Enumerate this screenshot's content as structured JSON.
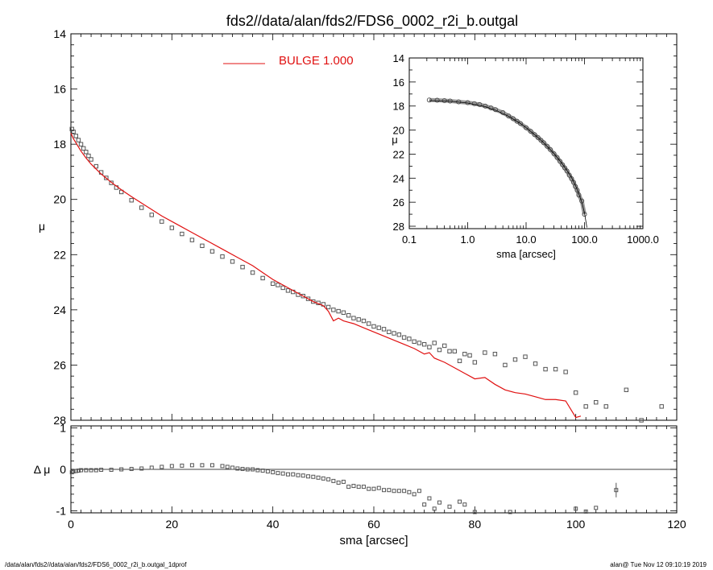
{
  "colors": {
    "model": "#e01010",
    "data_marker": "#555555",
    "frame": "#000000",
    "background": "#ffffff"
  },
  "footer": {
    "left": "/data/alan/fds2//data/alan/fds2/FDS6_0002_r2i_b.outgal_1dprof",
    "right": "alan@  Tue Nov 12 09:10:19 2019"
  },
  "chart_data": [
    {
      "id": "main",
      "type": "scatter",
      "title": "fds2//data/alan/fds2/FDS6_0002_r2i_b.outgal",
      "xlabel": "",
      "ylabel": "μ",
      "xlim": [
        0,
        120
      ],
      "ylim": [
        28,
        14
      ],
      "yticks": [
        "14",
        "16",
        "18",
        "20",
        "22",
        "24",
        "26",
        "28"
      ],
      "legend": {
        "placement": "top-center",
        "label": "BULGE  1.000"
      },
      "series": [
        {
          "name": "",
          "style": "open-square-markers",
          "x": [
            0.2,
            0.5,
            1,
            1.5,
            2,
            2.5,
            3,
            3.5,
            4,
            5,
            6,
            7,
            8,
            9,
            10,
            12,
            14,
            16,
            18,
            20,
            22,
            24,
            26,
            28,
            30,
            32,
            34,
            36,
            38,
            40,
            41,
            42,
            43,
            44,
            45,
            46,
            47,
            48,
            49,
            50,
            51,
            52,
            53,
            54,
            55,
            56,
            57,
            58,
            59,
            60,
            61,
            62,
            63,
            64,
            65,
            66,
            67,
            68,
            69,
            70,
            71,
            72,
            73,
            74,
            75,
            76,
            77,
            78,
            79,
            80,
            82,
            84,
            86,
            88,
            90,
            92,
            94,
            96,
            98,
            100,
            102,
            104,
            106,
            108,
            110,
            113,
            117
          ],
          "y": [
            17.45,
            17.55,
            17.7,
            17.85,
            18.0,
            18.15,
            18.28,
            18.42,
            18.55,
            18.8,
            19.02,
            19.22,
            19.4,
            19.57,
            19.73,
            20.03,
            20.3,
            20.56,
            20.8,
            21.03,
            21.25,
            21.47,
            21.68,
            21.88,
            22.07,
            22.25,
            22.45,
            22.65,
            22.85,
            23.05,
            23.1,
            23.2,
            23.3,
            23.35,
            23.45,
            23.5,
            23.6,
            23.7,
            23.75,
            23.8,
            23.9,
            24.0,
            24.05,
            24.1,
            24.2,
            24.3,
            24.35,
            24.4,
            24.5,
            24.6,
            24.65,
            24.7,
            24.8,
            24.85,
            24.9,
            25.0,
            25.05,
            25.15,
            25.2,
            25.25,
            25.35,
            25.2,
            25.45,
            25.3,
            25.5,
            25.5,
            25.85,
            25.6,
            25.65,
            25.9,
            25.55,
            25.6,
            26.0,
            25.8,
            25.7,
            25.95,
            26.15,
            26.15,
            26.25,
            27.0,
            27.5,
            27.35,
            27.5,
            28.5,
            26.9,
            28.0,
            27.5
          ]
        },
        {
          "name": "BULGE  1.000",
          "style": "line",
          "x": [
            0,
            0.5,
            1,
            2,
            3,
            4,
            6,
            8,
            10,
            12,
            15,
            18,
            21,
            24,
            27,
            30,
            33,
            36,
            38,
            40,
            42,
            44,
            46,
            48,
            50,
            51,
            52,
            53,
            54,
            55,
            56,
            58,
            60,
            62,
            64,
            66,
            68,
            70,
            71,
            72,
            74,
            76,
            78,
            80,
            82,
            84,
            86,
            88,
            90,
            92,
            94,
            96,
            98,
            100,
            101
          ],
          "y": [
            17.6,
            17.8,
            17.95,
            18.25,
            18.5,
            18.72,
            19.08,
            19.38,
            19.65,
            19.9,
            20.25,
            20.6,
            20.9,
            21.2,
            21.5,
            21.8,
            22.1,
            22.4,
            22.65,
            22.9,
            23.1,
            23.3,
            23.5,
            23.7,
            23.85,
            24.05,
            24.4,
            24.3,
            24.4,
            24.45,
            24.5,
            24.65,
            24.8,
            24.95,
            25.1,
            25.25,
            25.4,
            25.6,
            25.55,
            25.75,
            25.9,
            26.1,
            26.3,
            26.5,
            26.45,
            26.7,
            26.9,
            27.0,
            27.05,
            27.15,
            27.25,
            27.25,
            27.3,
            27.9,
            27.85
          ]
        }
      ]
    },
    {
      "id": "residual",
      "type": "scatter",
      "xlabel": "sma [arcsec]",
      "ylabel": "Δ μ",
      "xlim": [
        0,
        120
      ],
      "ylim": [
        -1.05,
        1.05
      ],
      "xticks": [
        "0",
        "20",
        "40",
        "60",
        "80",
        "100",
        "120"
      ],
      "yticks": [
        "1",
        "0",
        "-1"
      ],
      "reference_line": 0,
      "series": [
        {
          "name": "",
          "style": "open-square-markers",
          "x": [
            0.2,
            0.5,
            1,
            1.5,
            2,
            3,
            4,
            5,
            6,
            8,
            10,
            12,
            14,
            16,
            18,
            20,
            22,
            24,
            26,
            28,
            30,
            31,
            32,
            33,
            34,
            35,
            36,
            37,
            38,
            39,
            40,
            41,
            42,
            43,
            44,
            45,
            46,
            47,
            48,
            49,
            50,
            51,
            52,
            53,
            54,
            55,
            56,
            57,
            58,
            59,
            60,
            61,
            62,
            63,
            64,
            65,
            66,
            67,
            68,
            69,
            70,
            71,
            72,
            73,
            75,
            77,
            78,
            80,
            87,
            100,
            102,
            104,
            108
          ],
          "y": [
            -0.07,
            -0.05,
            -0.04,
            -0.03,
            -0.02,
            -0.02,
            -0.02,
            -0.02,
            -0.01,
            -0.01,
            0.0,
            0.01,
            0.02,
            0.04,
            0.06,
            0.08,
            0.09,
            0.1,
            0.1,
            0.1,
            0.08,
            0.06,
            0.04,
            0.02,
            0.01,
            0.0,
            0.0,
            -0.02,
            -0.03,
            -0.05,
            -0.07,
            -0.09,
            -0.1,
            -0.12,
            -0.12,
            -0.14,
            -0.15,
            -0.17,
            -0.18,
            -0.2,
            -0.22,
            -0.24,
            -0.28,
            -0.32,
            -0.3,
            -0.42,
            -0.4,
            -0.42,
            -0.42,
            -0.47,
            -0.47,
            -0.45,
            -0.5,
            -0.5,
            -0.52,
            -0.52,
            -0.52,
            -0.55,
            -0.6,
            -0.52,
            -0.85,
            -0.7,
            -0.95,
            -0.8,
            -0.9,
            -0.78,
            -0.85,
            -1.03,
            -1.03,
            -0.95,
            -1.02,
            -0.93,
            -0.5
          ]
        }
      ]
    },
    {
      "id": "inset",
      "type": "scatter",
      "xlabel": "sma [arcsec]",
      "ylabel": "μ",
      "xscale": "log",
      "xlim": [
        0.1,
        1000
      ],
      "ylim": [
        28.2,
        14
      ],
      "xticks": [
        "0.1",
        "1.0",
        "10.0",
        "100.0",
        "1000.0"
      ],
      "yticks": [
        "14",
        "16",
        "18",
        "20",
        "22",
        "24",
        "26",
        "28"
      ],
      "series": [
        {
          "name": "",
          "style": "open-circle-markers",
          "x": [
            0.22,
            0.3,
            0.4,
            0.5,
            0.7,
            1,
            1.3,
            1.6,
            2,
            2.5,
            3,
            4,
            5,
            6,
            7,
            8,
            10,
            12,
            14,
            16,
            18,
            20,
            23,
            26,
            30,
            34,
            38,
            42,
            46,
            50,
            55,
            60,
            65,
            70,
            75,
            80,
            90,
            100
          ],
          "y": [
            17.5,
            17.52,
            17.55,
            17.58,
            17.65,
            17.72,
            17.8,
            17.88,
            18.0,
            18.15,
            18.3,
            18.55,
            18.82,
            19.05,
            19.27,
            19.45,
            19.8,
            20.1,
            20.38,
            20.62,
            20.85,
            21.05,
            21.35,
            21.62,
            21.97,
            22.28,
            22.6,
            22.88,
            23.15,
            23.4,
            23.75,
            24.05,
            24.35,
            24.7,
            25.0,
            25.4,
            25.9,
            27.0
          ]
        },
        {
          "name": "BULGE  1.000",
          "style": "line",
          "x": [
            0.22,
            0.5,
            1,
            2,
            3,
            5,
            8,
            10,
            15,
            20,
            30,
            40,
            50,
            60,
            70,
            80,
            90,
            100,
            110
          ],
          "y": [
            17.55,
            17.6,
            17.75,
            18.05,
            18.35,
            18.85,
            19.45,
            19.8,
            20.5,
            21.05,
            21.95,
            22.7,
            23.35,
            23.95,
            24.6,
            25.3,
            26.0,
            26.9,
            28.1
          ]
        }
      ]
    }
  ]
}
